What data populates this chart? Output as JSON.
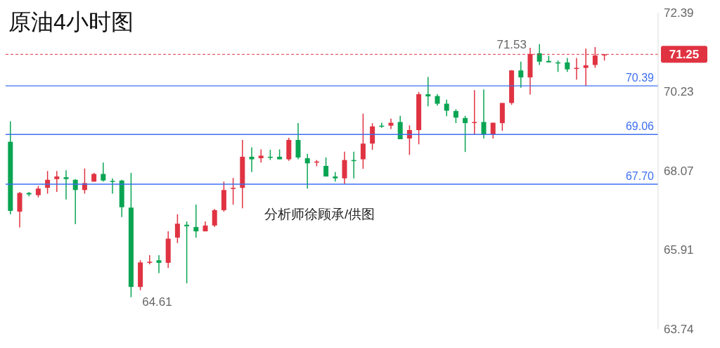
{
  "chart_data": {
    "type": "candlestick",
    "title": "原油4小时图",
    "categories": [
      null,
      null,
      null,
      null,
      null,
      null,
      null,
      null,
      null,
      null,
      null,
      null,
      null,
      null,
      null,
      null,
      null,
      null,
      null,
      null,
      null,
      null,
      null,
      null,
      null,
      null,
      null,
      null,
      null,
      null,
      null,
      null,
      null,
      null,
      null,
      null,
      null,
      null,
      null,
      null,
      null,
      null,
      null,
      null,
      null,
      null,
      null,
      null,
      null,
      null,
      null,
      null,
      null,
      null,
      null,
      null,
      null,
      null,
      null,
      null,
      null,
      null,
      null,
      null,
      null
    ],
    "ohlc": [
      [
        68.86,
        69.42,
        66.88,
        66.97
      ],
      [
        66.95,
        67.49,
        66.52,
        67.46
      ],
      [
        67.46,
        67.49,
        67.37,
        67.42
      ],
      [
        67.4,
        67.65,
        67.34,
        67.58
      ],
      [
        67.6,
        68.06,
        67.44,
        67.82
      ],
      [
        67.84,
        68.06,
        67.49,
        67.91
      ],
      [
        67.89,
        68.08,
        67.28,
        67.84
      ],
      [
        67.82,
        67.84,
        66.61,
        67.54
      ],
      [
        67.54,
        68.13,
        67.44,
        67.73
      ],
      [
        67.77,
        68.01,
        67.77,
        67.98
      ],
      [
        67.98,
        68.29,
        67.77,
        67.8
      ],
      [
        67.79,
        67.86,
        67.44,
        67.77
      ],
      [
        67.8,
        67.82,
        66.8,
        67.07
      ],
      [
        67.06,
        68.01,
        64.61,
        64.89
      ],
      [
        64.89,
        65.62,
        64.8,
        65.56
      ],
      [
        65.55,
        65.76,
        65.51,
        65.58
      ],
      [
        65.62,
        65.76,
        65.27,
        65.55
      ],
      [
        65.55,
        66.41,
        65.41,
        66.21
      ],
      [
        66.24,
        66.88,
        66.09,
        66.62
      ],
      [
        66.59,
        66.68,
        64.99,
        66.55
      ],
      [
        66.53,
        67.14,
        66.24,
        66.41
      ],
      [
        66.41,
        66.68,
        66.41,
        66.57
      ],
      [
        66.57,
        67.02,
        66.53,
        66.99
      ],
      [
        66.99,
        67.77,
        66.95,
        67.54
      ],
      [
        67.58,
        67.87,
        67.14,
        67.6
      ],
      [
        67.6,
        68.91,
        67.04,
        68.45
      ],
      [
        68.45,
        68.71,
        68.03,
        68.38
      ],
      [
        68.41,
        68.65,
        68.29,
        68.48
      ],
      [
        68.45,
        68.64,
        68.36,
        68.43
      ],
      [
        68.45,
        68.65,
        68.38,
        68.38
      ],
      [
        68.38,
        68.97,
        68.34,
        68.91
      ],
      [
        68.91,
        69.37,
        68.38,
        68.43
      ],
      [
        68.41,
        68.53,
        67.58,
        68.27
      ],
      [
        68.29,
        68.36,
        68.19,
        68.32
      ],
      [
        68.2,
        68.43,
        67.91,
        67.91
      ],
      [
        67.91,
        68.03,
        67.77,
        67.86
      ],
      [
        67.86,
        68.59,
        67.7,
        68.36
      ],
      [
        68.36,
        68.59,
        67.86,
        68.34
      ],
      [
        68.38,
        69.63,
        68.12,
        68.81
      ],
      [
        68.81,
        69.37,
        68.64,
        69.28
      ],
      [
        69.3,
        69.38,
        69.24,
        69.28
      ],
      [
        69.3,
        69.49,
        69.21,
        69.38
      ],
      [
        69.4,
        69.57,
        68.93,
        68.93
      ],
      [
        68.95,
        69.31,
        68.5,
        69.18
      ],
      [
        69.18,
        70.22,
        68.79,
        70.16
      ],
      [
        70.16,
        70.63,
        69.83,
        70.1
      ],
      [
        70.11,
        70.16,
        69.85,
        69.9
      ],
      [
        69.9,
        70.01,
        69.56,
        69.71
      ],
      [
        69.7,
        69.75,
        69.37,
        69.52
      ],
      [
        69.51,
        69.57,
        68.58,
        69.37
      ],
      [
        69.38,
        70.27,
        69.05,
        69.4
      ],
      [
        69.4,
        70.29,
        68.95,
        69.05
      ],
      [
        69.05,
        69.38,
        68.95,
        69.38
      ],
      [
        69.37,
        69.92,
        69.16,
        69.92
      ],
      [
        69.92,
        70.82,
        69.87,
        70.81
      ],
      [
        70.81,
        71.05,
        70.34,
        70.62
      ],
      [
        70.62,
        71.43,
        70.15,
        71.26
      ],
      [
        71.28,
        71.53,
        70.96,
        71.05
      ],
      [
        71.07,
        71.21,
        71.03,
        71.03
      ],
      [
        71.03,
        71.08,
        70.77,
        71.02
      ],
      [
        71.03,
        71.15,
        70.77,
        70.84
      ],
      [
        70.86,
        71.15,
        70.56,
        70.88
      ],
      [
        70.88,
        71.41,
        70.39,
        70.95
      ],
      [
        70.96,
        71.45,
        70.88,
        71.22
      ],
      [
        71.24,
        71.26,
        71.08,
        71.25
      ]
    ],
    "colors": [
      "#0aa553",
      "#e03342",
      "#0aa553",
      "#e03342",
      "#e03342",
      "#e03342",
      "#0aa553",
      "#0aa553",
      "#e03342",
      "#e03342",
      "#0aa553",
      "#0aa553",
      "#0aa553",
      "#0aa553",
      "#e03342",
      "#e03342",
      "#0aa553",
      "#e03342",
      "#e03342",
      "#0aa553",
      "#0aa553",
      "#e03342",
      "#e03342",
      "#e03342",
      "#e03342",
      "#e03342",
      "#0aa553",
      "#e03342",
      "#0aa553",
      "#0aa553",
      "#e03342",
      "#0aa553",
      "#0aa553",
      "#e03342",
      "#0aa553",
      "#0aa553",
      "#e03342",
      "#0aa553",
      "#e03342",
      "#e03342",
      "#0aa553",
      "#e03342",
      "#0aa553",
      "#e03342",
      "#e03342",
      "#0aa553",
      "#0aa553",
      "#0aa553",
      "#0aa553",
      "#0aa553",
      "#e03342",
      "#0aa553",
      "#e03342",
      "#e03342",
      "#e03342",
      "#0aa553",
      "#e03342",
      "#0aa553",
      "#0aa553",
      "#0aa553",
      "#0aa553",
      "#e03342",
      "#e03342",
      "#e03342",
      "#e03342"
    ],
    "ylim": [
      63.74,
      72.39
    ],
    "yticks": [
      63.74,
      65.91,
      68.07,
      70.23,
      72.39
    ],
    "tick_labels": "y",
    "ref_lines": [
      {
        "axis": "y",
        "value": 70.39,
        "label": "70.39",
        "color": "#3d6ff0",
        "line_style": "solid"
      },
      {
        "axis": "y",
        "value": 69.06,
        "label": "69.06",
        "color": "#3d6ff0",
        "line_style": "solid"
      },
      {
        "axis": "y",
        "value": 67.7,
        "label": "67.70",
        "color": "#3d6ff0",
        "line_style": "solid"
      },
      {
        "axis": "y",
        "value": 71.25,
        "label": "71.25",
        "color": "#e03342",
        "line_style": "dashed"
      }
    ],
    "annotations": [
      "71.53",
      "64.61",
      "分析师徐顾承/供图"
    ]
  }
}
